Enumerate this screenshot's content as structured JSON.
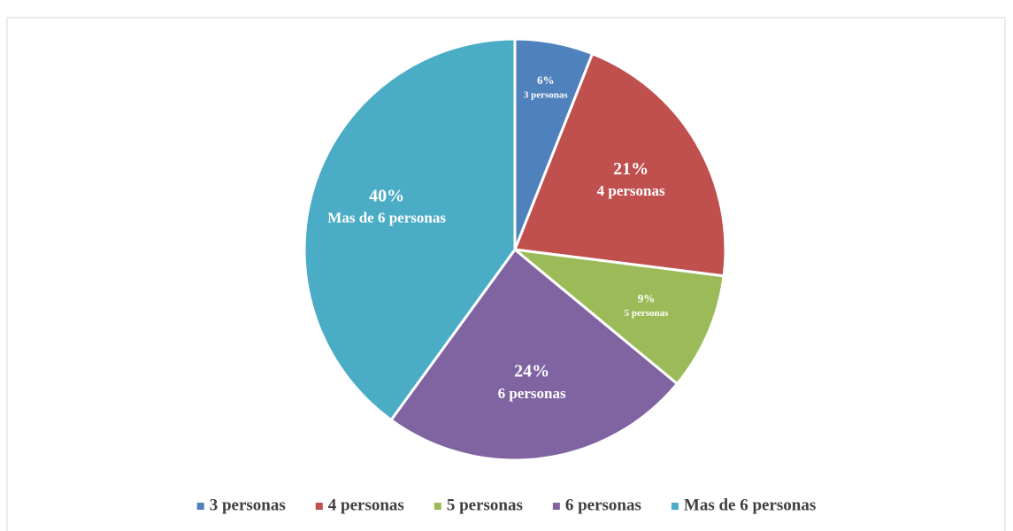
{
  "chart_data": {
    "type": "pie",
    "categories": [
      "3 personas",
      "4 personas",
      "5 personas",
      "6 personas",
      "Mas de 6 personas"
    ],
    "values": [
      6,
      21,
      9,
      24,
      40
    ],
    "value_labels": [
      "6%",
      "21%",
      "9%",
      "24%",
      "40%"
    ],
    "colors": [
      "#4f81bd",
      "#c0504d",
      "#9bbb59",
      "#8064a2",
      "#4bacc6"
    ],
    "legend": "bottom"
  }
}
